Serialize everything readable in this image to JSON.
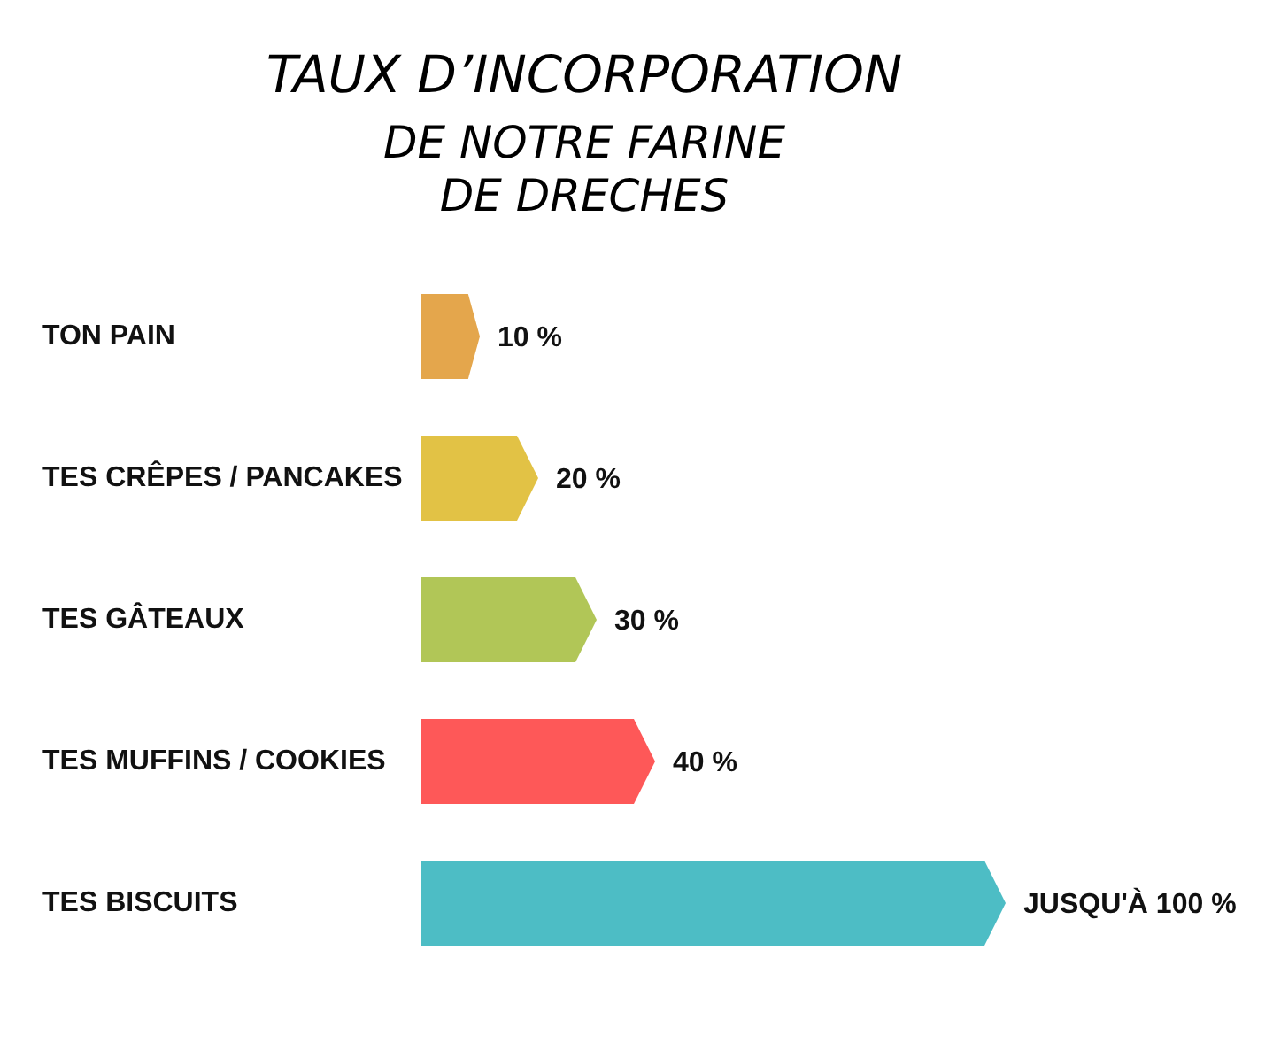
{
  "chart_data": {
    "type": "bar",
    "orientation": "horizontal",
    "title": "TAUX D’INCORPORATION",
    "subtitle": "DE NOTRE FARINE DE DRECHES",
    "categories": [
      "TON PAIN",
      "TES CRÊPES / PANCAKES",
      "TES GÂTEAUX",
      "TES MUFFINS / COOKIES",
      "TES BISCUITS"
    ],
    "values": [
      10,
      20,
      30,
      40,
      100
    ],
    "value_labels": [
      "10 %",
      "20 %",
      "30 %",
      "40 %",
      "JUSQU'À 100 %"
    ],
    "colors": [
      "#e4a64c",
      "#e2c245",
      "#b1c657",
      "#fe5858",
      "#4dbdc5"
    ]
  }
}
